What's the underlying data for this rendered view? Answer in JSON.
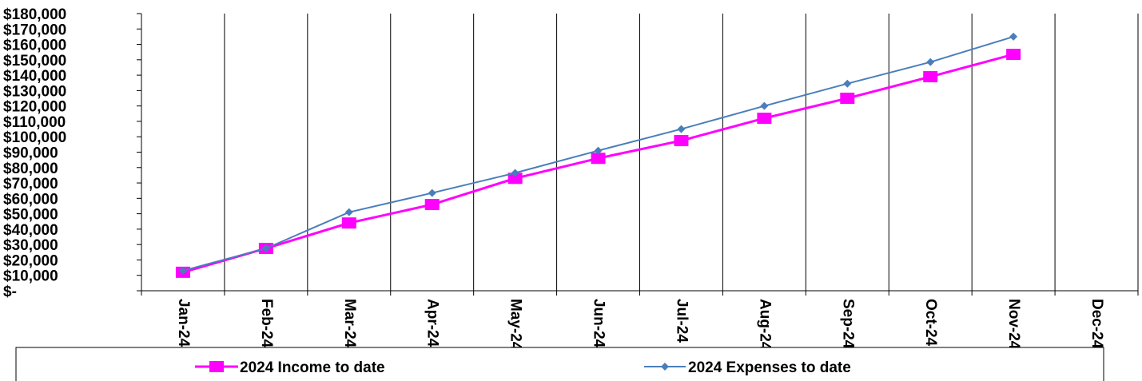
{
  "chart_data": {
    "type": "line",
    "categories": [
      "Jan-24",
      "Feb-24",
      "Mar-24",
      "Apr-24",
      "May-24",
      "Jun-24",
      "Jul-24",
      "Aug-24",
      "Sep-24",
      "Oct-24",
      "Nov-24",
      "Dec-24"
    ],
    "y_tick_labels": [
      "$-",
      "$10,000",
      "$20,000",
      "$30,000",
      "$40,000",
      "$50,000",
      "$60,000",
      "$70,000",
      "$80,000",
      "$90,000",
      "$100,000",
      "$110,000",
      "$120,000",
      "$130,000",
      "$140,000",
      "$150,000",
      "$160,000",
      "$170,000",
      "$180,000"
    ],
    "ylim": [
      0,
      180000
    ],
    "ytick_step": 10000,
    "grid": "vertical",
    "legend_position": "bottom",
    "series": [
      {
        "name": "2024 Income to date",
        "color": "#ff00ff",
        "marker": "square",
        "values": [
          12000,
          27500,
          44000,
          56000,
          73000,
          86000,
          97500,
          112000,
          125000,
          139000,
          153500,
          null
        ]
      },
      {
        "name": "2024 Expenses to date",
        "color": "#4a7ebb",
        "marker": "diamond",
        "values": [
          13000,
          27500,
          51000,
          63500,
          76500,
          91000,
          105000,
          120000,
          134500,
          148500,
          165000,
          null
        ]
      }
    ]
  }
}
